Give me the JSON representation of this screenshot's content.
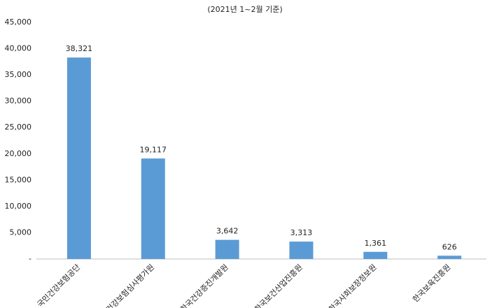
{
  "chart_data": {
    "type": "bar",
    "subtitle": "(2021년 1~2월 기준)",
    "categories": [
      "국민건강보험공단",
      "건강보험심사평가원",
      "한국건강증진개발원",
      "한국보건산업진흥원",
      "한국사회보장정보원",
      "한국보육진흥원"
    ],
    "values": [
      38321,
      19117,
      3642,
      3313,
      1361,
      626
    ],
    "value_labels": [
      "38,321",
      "19,117",
      "3,642",
      "3,313",
      "1,361",
      "626"
    ],
    "color": "#5b9bd5",
    "ylim": [
      0,
      45000
    ],
    "yticks": [
      {
        "value": 0,
        "label": "-"
      },
      {
        "value": 5000,
        "label": "5,000"
      },
      {
        "value": 10000,
        "label": "10,000"
      },
      {
        "value": 15000,
        "label": "15,000"
      },
      {
        "value": 20000,
        "label": "20,000"
      },
      {
        "value": 25000,
        "label": "25,000"
      },
      {
        "value": 30000,
        "label": "30,000"
      },
      {
        "value": 35000,
        "label": "35,000"
      },
      {
        "value": 40000,
        "label": "40,000"
      },
      {
        "value": 45000,
        "label": "45,000"
      }
    ],
    "grid": false
  }
}
